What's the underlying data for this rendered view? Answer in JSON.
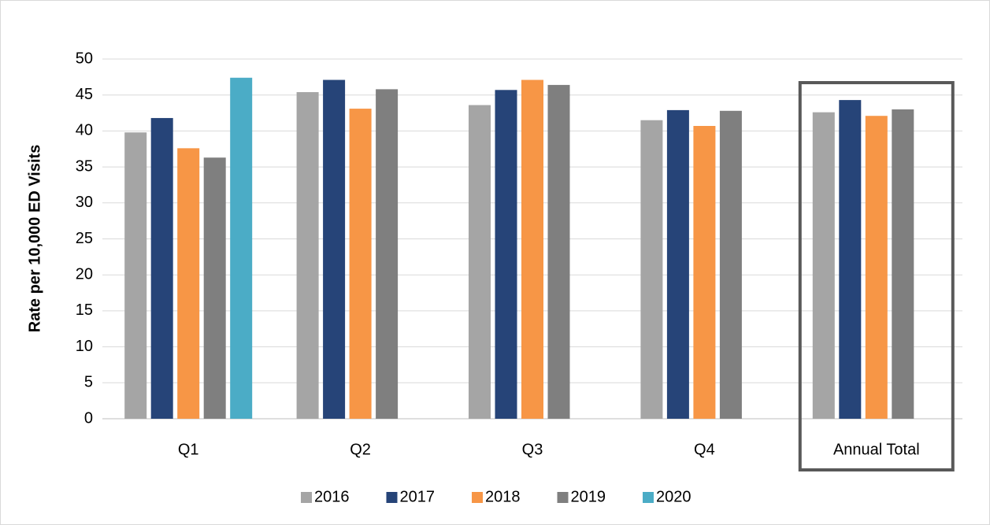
{
  "chart_data": {
    "type": "bar",
    "y_label": "Rate per 10,000 ED Visits",
    "categories": [
      "Q1",
      "Q2",
      "Q3",
      "Q4",
      "Annual Total"
    ],
    "series": [
      {
        "name": "2016",
        "color": "#a5a5a5",
        "values": [
          39.8,
          45.4,
          43.6,
          41.5,
          42.6
        ]
      },
      {
        "name": "2017",
        "color": "#264478",
        "values": [
          41.8,
          47.1,
          45.7,
          42.9,
          44.3
        ]
      },
      {
        "name": "2018",
        "color": "#f79646",
        "values": [
          37.6,
          43.1,
          47.1,
          40.7,
          42.1
        ]
      },
      {
        "name": "2019",
        "color": "#7f7f7f",
        "values": [
          36.3,
          45.8,
          46.4,
          42.8,
          43.0
        ]
      },
      {
        "name": "2020",
        "color": "#4bacc6",
        "values": [
          47.4,
          null,
          null,
          null,
          null
        ]
      }
    ],
    "ylim": [
      0,
      50
    ],
    "yticks": [
      0,
      5,
      10,
      15,
      20,
      25,
      30,
      35,
      40,
      45,
      50
    ],
    "grid": true,
    "legend": "bottom"
  }
}
